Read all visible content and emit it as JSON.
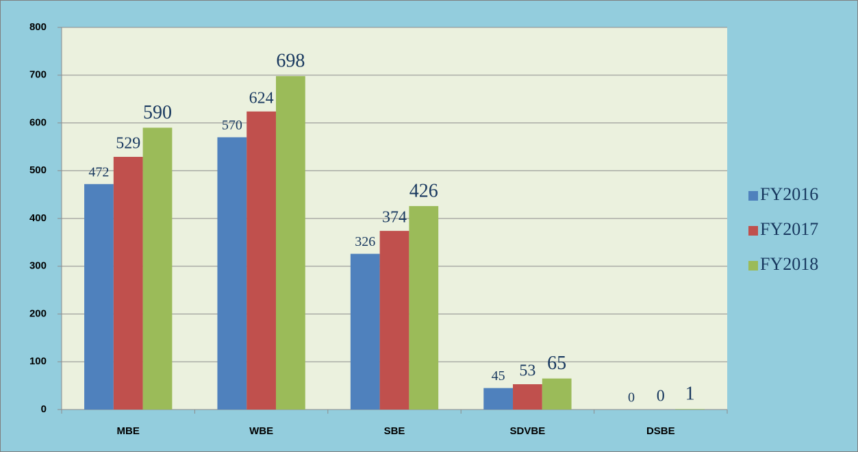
{
  "chart_data": {
    "type": "bar",
    "categories": [
      "MBE",
      "WBE",
      "SBE",
      "SDVBE",
      "DSBE"
    ],
    "series": [
      {
        "name": "FY2016",
        "color": "#4f81bd",
        "values": [
          472,
          570,
          326,
          45,
          0
        ]
      },
      {
        "name": "FY2017",
        "color": "#c0504d",
        "values": [
          529,
          624,
          374,
          53,
          0
        ]
      },
      {
        "name": "FY2018",
        "color": "#9bbb59",
        "values": [
          590,
          698,
          426,
          65,
          1
        ]
      }
    ],
    "ylim": [
      0,
      800
    ],
    "yticks": [
      0,
      100,
      200,
      300,
      400,
      500,
      600,
      700,
      800
    ],
    "grid": true,
    "legend": "right"
  }
}
